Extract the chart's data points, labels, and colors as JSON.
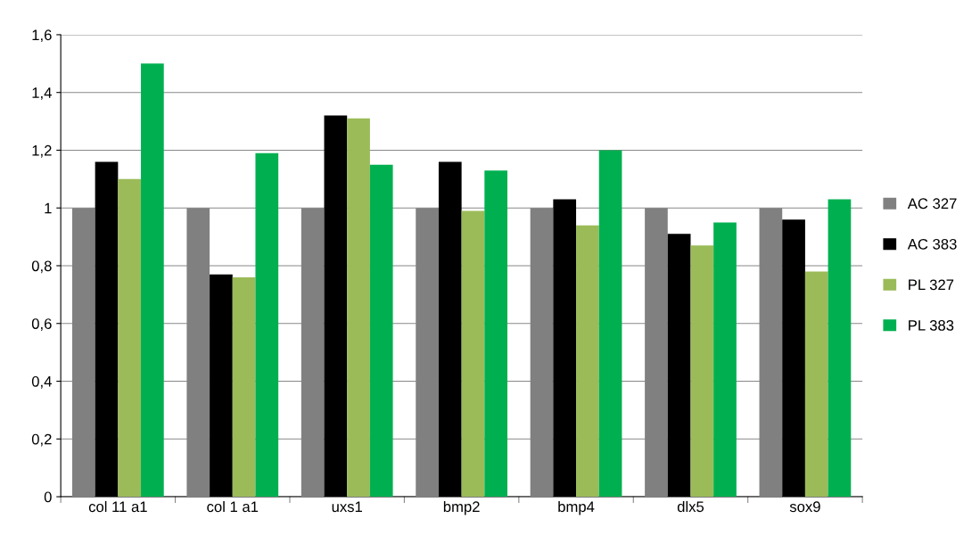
{
  "chart_data": {
    "type": "bar",
    "categories": [
      "col 11 a1",
      "col 1 a1",
      "uxs1",
      "bmp2",
      "bmp4",
      "dlx5",
      "sox9"
    ],
    "series": [
      {
        "name": "AC 327",
        "color": "#808080",
        "values": [
          1,
          1,
          1,
          1,
          1,
          1,
          1
        ]
      },
      {
        "name": "AC 383",
        "color": "#000000",
        "values": [
          1.16,
          0.77,
          1.32,
          1.16,
          1.03,
          0.91,
          0.96
        ]
      },
      {
        "name": "PL 327",
        "color": "#9bbb59",
        "values": [
          1.1,
          0.76,
          1.31,
          0.99,
          0.94,
          0.87,
          0.78
        ]
      },
      {
        "name": "PL 383",
        "color": "#00b050",
        "values": [
          1.5,
          1.19,
          1.15,
          1.13,
          1.2,
          0.95,
          1.03
        ]
      }
    ],
    "ylim": [
      0,
      1.6
    ],
    "yticks": [
      0,
      {
        "value": 0.2,
        "label": "0,2"
      },
      {
        "value": 0.4,
        "label": "0,4"
      },
      {
        "value": 0.6,
        "label": "0,6"
      },
      {
        "value": 0.8,
        "label": "0,8"
      },
      1,
      {
        "value": 1.2,
        "label": "1,2"
      },
      {
        "value": 1.4,
        "label": "1,4"
      },
      {
        "value": 1.6,
        "label": "1,6"
      }
    ],
    "grid": "y",
    "legend": "right"
  }
}
